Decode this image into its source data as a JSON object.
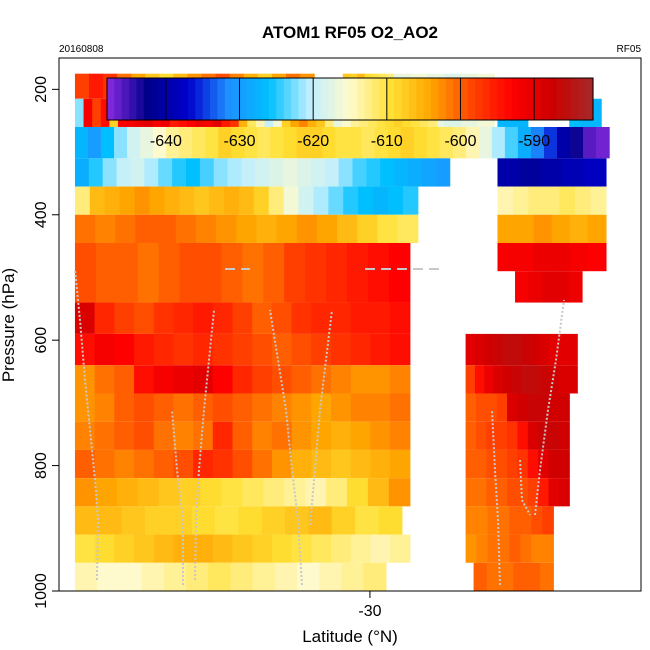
{
  "header": {
    "title": "ATOM1 RF05 O2_AO2",
    "date": "20160808",
    "flight": "RF05"
  },
  "chart_data": {
    "type": "heatmap",
    "title": "ATOM1 RF05 O2_AO2",
    "xlabel": "Latitude (°N)",
    "ylabel": "Pressure (hPa)",
    "x_ticks": [
      -30
    ],
    "y_ticks": [
      200,
      400,
      600,
      800,
      1000
    ],
    "ylim": [
      1000,
      150
    ],
    "y_reversed": true,
    "colorbar": {
      "min": -648,
      "max": -582,
      "ticks": [
        -640,
        -630,
        -620,
        -610,
        -600,
        -590
      ],
      "colors": [
        "#8a2be2",
        "#00008b",
        "#0000cd",
        "#1e90ff",
        "#00bfff",
        "#bfefff",
        "#fffacd",
        "#ffe135",
        "#ffa500",
        "#ff4500",
        "#ff0000",
        "#cc0000",
        "#a52a2a"
      ]
    },
    "cells": [
      {
        "lat": [
          -48.5,
          -33.5
        ],
        "p": [
          175,
          215
        ],
        "values": [
          -598,
          -595,
          -597,
          -601,
          -604,
          -607,
          -609,
          -606,
          -603,
          -601,
          -599,
          -602,
          -605,
          -608,
          -604,
          -601,
          -603
        ]
      },
      {
        "lat": [
          -31.7,
          -28.5
        ],
        "p": [
          175,
          215
        ],
        "values": [
          -607,
          -608,
          -606,
          -609,
          -610,
          -611,
          -612
        ]
      },
      {
        "lat": [
          -28.5,
          -22.2
        ],
        "p": [
          175,
          260
        ],
        "values": [
          -617,
          -616,
          -617,
          -618,
          -617,
          -616
        ]
      },
      {
        "lat": [
          -48.5,
          -25.8
        ],
        "p": [
          215,
          260
        ],
        "values": [
          -622,
          -592,
          -598,
          -594,
          -608,
          -593,
          -592,
          -591,
          -590,
          -592,
          -591,
          -595,
          -594,
          -593,
          -591,
          -592,
          -590,
          -595,
          -597,
          -605,
          -611,
          -614,
          -620,
          -616,
          -608,
          -604,
          -602,
          -605,
          -607,
          -612,
          -617,
          -615,
          -613,
          -612,
          -611,
          -610,
          -609,
          -608,
          -609,
          -610,
          -611,
          -612
        ]
      },
      {
        "lat": [
          -22.0,
          -20.1
        ],
        "p": [
          215,
          260
        ],
        "values": [
          -627,
          -627,
          -627
        ]
      },
      {
        "lat": [
          -17.5,
          -15.5
        ],
        "p": [
          215,
          260
        ],
        "values": [
          -626,
          -627,
          -627
        ]
      },
      {
        "lat": [
          -48.5,
          -15.0
        ],
        "p": [
          260,
          310
        ],
        "values": [
          -627,
          -630,
          -626,
          -622,
          -619,
          -617,
          -615,
          -613,
          -612,
          -611,
          -610,
          -608,
          -609,
          -610,
          -611,
          -610,
          -609,
          -608,
          -608,
          -609,
          -610,
          -610,
          -611,
          -610,
          -609,
          -608,
          -609,
          -610,
          -611,
          -612,
          -614,
          -617,
          -621,
          -624,
          -628,
          -632,
          -635,
          -640,
          -643,
          -646,
          -647
        ]
      },
      {
        "lat": [
          -48.5,
          -25.0
        ],
        "p": [
          310,
          355
        ],
        "values": [
          -628,
          -625,
          -622,
          -620,
          -619,
          -621,
          -623,
          -625,
          -626,
          -624,
          -622,
          -621,
          -620,
          -619,
          -618,
          -617,
          -618,
          -619,
          -620,
          -622,
          -624,
          -625,
          -626,
          -627,
          -628,
          -629,
          -630
        ]
      },
      {
        "lat": [
          -22.0,
          -15.2
        ],
        "p": [
          310,
          355
        ],
        "values": [
          -640,
          -641,
          -640,
          -639,
          -638
        ]
      },
      {
        "lat": [
          -48.5,
          -27.0
        ],
        "p": [
          355,
          400
        ],
        "values": [
          -612,
          -606,
          -605,
          -604,
          -603,
          -604,
          -605,
          -606,
          -607,
          -606,
          -605,
          -606,
          -608,
          -612,
          -616,
          -619,
          -621,
          -623,
          -625,
          -626,
          -627,
          -626,
          -625
        ]
      },
      {
        "lat": [
          -22.0,
          -15.2
        ],
        "p": [
          355,
          400
        ],
        "values": [
          -614,
          -613,
          -612,
          -612,
          -611,
          -612,
          -613
        ]
      },
      {
        "lat": [
          -48.5,
          -27.0
        ],
        "p": [
          400,
          445
        ],
        "values": [
          -601,
          -602,
          -601,
          -600,
          -600,
          -601,
          -602,
          -603,
          -604,
          -605,
          -604,
          -603,
          -604,
          -606,
          -608,
          -610,
          -611
        ]
      },
      {
        "lat": [
          -22.0,
          -15.2
        ],
        "p": [
          400,
          445
        ],
        "values": [
          -604,
          -604,
          -603,
          -604,
          -605,
          -604
        ]
      },
      {
        "lat": [
          -48.5,
          -27.5
        ],
        "p": [
          445,
          540
        ],
        "values": [
          -599,
          -600,
          -600,
          -601,
          -600,
          -599,
          -599,
          -600,
          -601,
          -600,
          -598,
          -597,
          -596,
          -595,
          -594,
          -593
        ]
      },
      {
        "lat": [
          -22.0,
          -15.2
        ],
        "p": [
          445,
          490
        ],
        "values": [
          -592,
          -592,
          -591,
          -591,
          -592,
          -593
        ]
      },
      {
        "lat": [
          -20.9,
          -16.7
        ],
        "p": [
          490,
          540
        ],
        "values": [
          -592,
          -591,
          -590,
          -590,
          -591
        ]
      },
      {
        "lat": [
          -48.5,
          -27.5
        ],
        "p": [
          540,
          590
        ],
        "values": [
          -589,
          -596,
          -598,
          -599,
          -597,
          -596,
          -595,
          -596,
          -598,
          -600,
          -599,
          -597,
          -596,
          -596,
          -595,
          -595,
          -594
        ]
      },
      {
        "lat": [
          -24.0,
          -17.0
        ],
        "p": [
          590,
          640
        ],
        "values": [
          -590,
          -589,
          -588,
          -587,
          -586,
          -586,
          -587,
          -588,
          -589,
          -590,
          -590,
          -590
        ]
      },
      {
        "lat": [
          -48.5,
          -27.5
        ],
        "p": [
          590,
          640
        ],
        "values": [
          -594,
          -592,
          -593,
          -595,
          -596,
          -597,
          -596,
          -597,
          -598,
          -599,
          -600,
          -599,
          -598,
          -597,
          -596,
          -595,
          -594
        ]
      },
      {
        "lat": [
          -48.5,
          -27.5
        ],
        "p": [
          640,
          685
        ],
        "values": [
          -603,
          -601,
          -600,
          -594,
          -592,
          -591,
          -590,
          -593,
          -596,
          -598,
          -599,
          -600,
          -601,
          -602,
          -603,
          -603,
          -602
        ]
      },
      {
        "lat": [
          -24.0,
          -17.0
        ],
        "p": [
          640,
          685
        ],
        "values": [
          -598,
          -594,
          -591,
          -589,
          -588,
          -587,
          -586,
          -586,
          -587,
          -588,
          -589,
          -589
        ]
      },
      {
        "lat": [
          -48.5,
          -27.5
        ],
        "p": [
          685,
          730
        ],
        "values": [
          -603,
          -602,
          -600,
          -599,
          -600,
          -601,
          -600,
          -599,
          -600,
          -601,
          -602,
          -603,
          -604,
          -603,
          -602,
          -602,
          -601
        ]
      },
      {
        "lat": [
          -24.0,
          -17.5
        ],
        "p": [
          685,
          730
        ],
        "values": [
          -600,
          -599,
          -599,
          -598,
          -589,
          -588,
          -587,
          -587,
          -588,
          -588
        ]
      },
      {
        "lat": [
          -48.5,
          -27.5
        ],
        "p": [
          730,
          775
        ],
        "values": [
          -602,
          -601,
          -600,
          -599,
          -601,
          -602,
          -601,
          -596,
          -600,
          -602,
          -601,
          -603,
          -604,
          -605,
          -604,
          -603,
          -602
        ]
      },
      {
        "lat": [
          -24.0,
          -17.5
        ],
        "p": [
          730,
          775
        ],
        "values": [
          -600,
          -599,
          -598,
          -598,
          -597,
          -594,
          -589,
          -587,
          -587,
          -588
        ]
      },
      {
        "lat": [
          -48.5,
          -27.5
        ],
        "p": [
          775,
          820
        ],
        "values": [
          -600,
          -601,
          -602,
          -601,
          -600,
          -599,
          -596,
          -597,
          -599,
          -601,
          -603,
          -605,
          -606,
          -607,
          -606,
          -605,
          -604
        ]
      },
      {
        "lat": [
          -24.0,
          -17.5
        ],
        "p": [
          775,
          820
        ],
        "values": [
          -600,
          -600,
          -599,
          -599,
          -598,
          -597,
          -594,
          -590,
          -588,
          -588
        ]
      },
      {
        "lat": [
          -48.5,
          -27.5
        ],
        "p": [
          820,
          865
        ],
        "values": [
          -603,
          -604,
          -605,
          -606,
          -607,
          -608,
          -609,
          -610,
          -611,
          -612,
          -613,
          -614,
          -612,
          -609,
          -606,
          -603
        ]
      },
      {
        "lat": [
          -24.0,
          -17.5
        ],
        "p": [
          820,
          865
        ],
        "values": [
          -601,
          -601,
          -600,
          -600,
          -599,
          -599,
          -598,
          -595,
          -590,
          -589
        ]
      },
      {
        "lat": [
          -48.5,
          -28.0
        ],
        "p": [
          865,
          910
        ],
        "values": [
          -606,
          -606,
          -607,
          -608,
          -608,
          -609,
          -610,
          -609,
          -608,
          -607,
          -606,
          -608,
          -610,
          -609
        ]
      },
      {
        "lat": [
          -24.0,
          -18.5
        ],
        "p": [
          865,
          910
        ],
        "values": [
          -602,
          -602,
          -601,
          -601,
          -600,
          -600,
          -599,
          -598
        ]
      },
      {
        "lat": [
          -48.5,
          -27.5
        ],
        "p": [
          910,
          955
        ],
        "values": [
          -610,
          -609,
          -608,
          -607,
          -606,
          -605,
          -605,
          -606,
          -607,
          -608,
          -609,
          -610,
          -611,
          -612,
          -613,
          -614,
          -613
        ]
      },
      {
        "lat": [
          -24.0,
          -18.5
        ],
        "p": [
          910,
          955
        ],
        "values": [
          -603,
          -602,
          -601,
          -601,
          -600,
          -601,
          -602,
          -602
        ]
      },
      {
        "lat": [
          -48.5,
          -29.0
        ],
        "p": [
          955,
          1000
        ],
        "values": [
          -614,
          -615,
          -615,
          -614,
          -613,
          -612,
          -611,
          -612,
          -613,
          -614,
          -615,
          -614,
          -613,
          -612
        ]
      },
      {
        "lat": [
          -23.5,
          -18.5
        ],
        "p": [
          955,
          1000
        ],
        "values": [
          -600,
          -601,
          -601,
          -600,
          -600,
          -601
        ]
      }
    ]
  }
}
